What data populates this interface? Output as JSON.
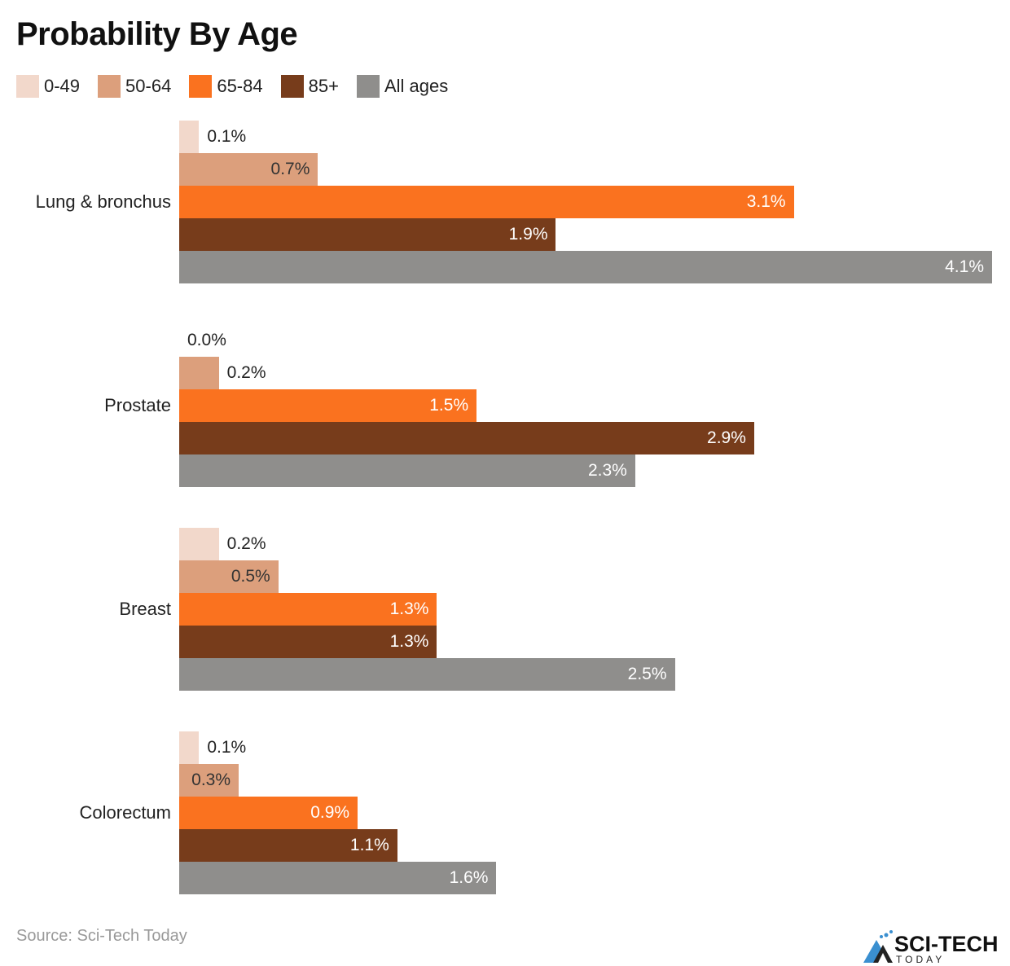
{
  "chart_data": {
    "type": "bar",
    "orientation": "horizontal",
    "title": "Probability By Age",
    "categories": [
      "Lung & bronchus",
      "Prostate",
      "Breast",
      "Colorectum"
    ],
    "series": [
      {
        "name": "0-49",
        "color": "#f2d8cb",
        "values": [
          0.1,
          0.0,
          0.2,
          0.1
        ]
      },
      {
        "name": "50-64",
        "color": "#dc9f7c",
        "values": [
          0.7,
          0.2,
          0.5,
          0.3
        ]
      },
      {
        "name": "65-84",
        "color": "#fa721f",
        "values": [
          3.1,
          1.5,
          1.3,
          0.9
        ]
      },
      {
        "name": "85+",
        "color": "#773c1b",
        "values": [
          1.9,
          2.9,
          1.3,
          1.1
        ]
      },
      {
        "name": "All ages",
        "color": "#8f8e8c",
        "values": [
          4.1,
          2.3,
          2.5,
          1.6
        ]
      }
    ],
    "value_suffix": "%",
    "xlim": [
      0,
      4.1
    ],
    "grid": false,
    "legend": "top-left"
  },
  "source": "Source: Sci-Tech Today",
  "logo": {
    "text": "SCI-TECH",
    "sub": "TODAY"
  }
}
